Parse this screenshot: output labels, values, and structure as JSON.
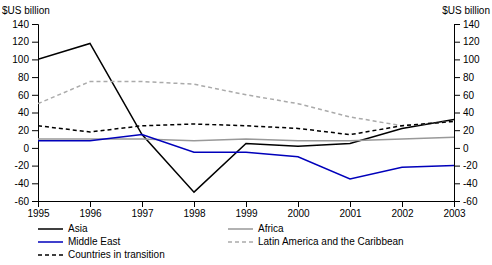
{
  "chart_data": {
    "type": "line",
    "x": [
      1995,
      1996,
      1997,
      1998,
      1999,
      2000,
      2001,
      2002,
      2003
    ],
    "xlim": [
      1995,
      2003
    ],
    "xticks": [
      1995,
      1996,
      1997,
      1998,
      1999,
      2000,
      2001,
      2002,
      2003
    ],
    "ylim": [
      -60,
      140
    ],
    "yticks": [
      -60,
      -40,
      -20,
      0,
      20,
      40,
      60,
      80,
      100,
      120,
      140
    ],
    "y2lim": [
      -60,
      140
    ],
    "y2ticks": [
      -60,
      -40,
      -20,
      0,
      20,
      40,
      60,
      80,
      100,
      120,
      140
    ],
    "ylabel": "$US billion",
    "y2label": "$US billion",
    "grid": false,
    "legend": "bottom",
    "series": [
      {
        "name": "Asia",
        "color": "#000000",
        "line_style": "solid",
        "values": [
          100,
          118,
          15,
          -50,
          5,
          2,
          5,
          22,
          32
        ]
      },
      {
        "name": "Africa",
        "color": "#999999",
        "line_style": "solid",
        "values": [
          10,
          10,
          10,
          8,
          10,
          8,
          8,
          10,
          12
        ]
      },
      {
        "name": "Middle East",
        "color": "#0000bb",
        "line_style": "solid",
        "values": [
          8,
          8,
          15,
          -5,
          -5,
          -10,
          -35,
          -22,
          -20
        ]
      },
      {
        "name": "Latin America and the Caribbean",
        "color": "#aaaaaa",
        "line_style": "dashed",
        "values": [
          50,
          75,
          75,
          72,
          60,
          50,
          35,
          25,
          30
        ]
      },
      {
        "name": "Countries in transition",
        "color": "#000000",
        "line_style": "dashed",
        "values": [
          25,
          18,
          25,
          27,
          25,
          22,
          15,
          25,
          30
        ]
      }
    ]
  }
}
